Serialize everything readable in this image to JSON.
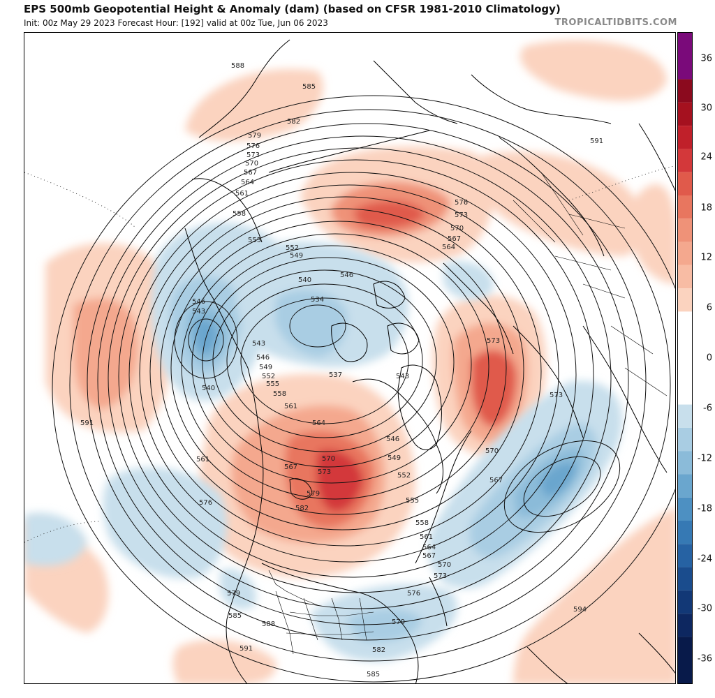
{
  "header": {
    "title": "EPS 500mb Geopotential Height & Anomaly (dam) (based on CFSR 1981-2010 Climatology)",
    "subtitle": "Init: 00z May 29 2023   Forecast Hour: [192]   valid at 00z Tue, Jun 06 2023",
    "brand": "TROPICALTIDBITS.COM"
  },
  "colorbar": {
    "labels": [
      "36",
      "30",
      "24",
      "18",
      "12",
      "6",
      "0",
      "-6",
      "-12",
      "-18",
      "-24",
      "-30",
      "-36"
    ],
    "bins": [
      {
        "range": "36 to 42",
        "color": "#7a0a7a"
      },
      {
        "range": "33 to 36",
        "color": "#8b0a1e"
      },
      {
        "range": "30 to 33",
        "color": "#a5111f"
      },
      {
        "range": "27 to 30",
        "color": "#c0202a"
      },
      {
        "range": "24 to 27",
        "color": "#d3383a"
      },
      {
        "range": "21 to 24",
        "color": "#e05a4b"
      },
      {
        "range": "18 to 21",
        "color": "#e8765f"
      },
      {
        "range": "15 to 18",
        "color": "#ef9278"
      },
      {
        "range": "12 to 15",
        "color": "#f4a88e"
      },
      {
        "range": "9 to 12",
        "color": "#f8bca4"
      },
      {
        "range": "6 to 9",
        "color": "#fbd3bf"
      },
      {
        "range": "-6 to 6",
        "color": "#ffffff"
      },
      {
        "range": "-9 to -6",
        "color": "#c8dfec"
      },
      {
        "range": "-12 to -9",
        "color": "#a9cde3"
      },
      {
        "range": "-15 to -12",
        "color": "#8bbbd9"
      },
      {
        "range": "-18 to -15",
        "color": "#6aa6ce"
      },
      {
        "range": "-21 to -18",
        "color": "#4d90c2"
      },
      {
        "range": "-24 to -21",
        "color": "#3679b4"
      },
      {
        "range": "-27 to -24",
        "color": "#2662a3"
      },
      {
        "range": "-30 to -27",
        "color": "#1a4c8d"
      },
      {
        "range": "-33 to -30",
        "color": "#123876"
      },
      {
        "range": "-36 to -33",
        "color": "#0d2760"
      },
      {
        "range": "-42 to -36",
        "color": "#081a4a"
      }
    ]
  },
  "contour_labels": [
    {
      "id": "588-a",
      "text": "588"
    },
    {
      "id": "585-a",
      "text": "585"
    },
    {
      "id": "582-a",
      "text": "582"
    },
    {
      "id": "579-a",
      "text": "579"
    },
    {
      "id": "576-a",
      "text": "576"
    },
    {
      "id": "573-a",
      "text": "573"
    },
    {
      "id": "570-a",
      "text": "570"
    },
    {
      "id": "567-a",
      "text": "567"
    },
    {
      "id": "564-a",
      "text": "564"
    },
    {
      "id": "561-a",
      "text": "561"
    },
    {
      "id": "558-a",
      "text": "558"
    },
    {
      "id": "555-a",
      "text": "555"
    },
    {
      "id": "552-a",
      "text": "552"
    },
    {
      "id": "549-a",
      "text": "549"
    },
    {
      "id": "546-a",
      "text": "546"
    },
    {
      "id": "540-a",
      "text": "540"
    },
    {
      "id": "534-a",
      "text": "534"
    },
    {
      "id": "546-b",
      "text": "546"
    },
    {
      "id": "543-a",
      "text": "543"
    },
    {
      "id": "543-b",
      "text": "543"
    },
    {
      "id": "546-c",
      "text": "546"
    },
    {
      "id": "549-b",
      "text": "549"
    },
    {
      "id": "540-b",
      "text": "540"
    },
    {
      "id": "552-b",
      "text": "552"
    },
    {
      "id": "555-b",
      "text": "555"
    },
    {
      "id": "558-b",
      "text": "558"
    },
    {
      "id": "561-b",
      "text": "561"
    },
    {
      "id": "537-a",
      "text": "537"
    },
    {
      "id": "543-c",
      "text": "543"
    },
    {
      "id": "564-b",
      "text": "564"
    },
    {
      "id": "546-d",
      "text": "546"
    },
    {
      "id": "549-c",
      "text": "549"
    },
    {
      "id": "567-b",
      "text": "567"
    },
    {
      "id": "570-b",
      "text": "570"
    },
    {
      "id": "573-b",
      "text": "573"
    },
    {
      "id": "552-c",
      "text": "552"
    },
    {
      "id": "579-b",
      "text": "579"
    },
    {
      "id": "582-b",
      "text": "582"
    },
    {
      "id": "555-c",
      "text": "555"
    },
    {
      "id": "558-c",
      "text": "558"
    },
    {
      "id": "561-c",
      "text": "561"
    },
    {
      "id": "564-c",
      "text": "564"
    },
    {
      "id": "567-c",
      "text": "567"
    },
    {
      "id": "570-c",
      "text": "570"
    },
    {
      "id": "573-c",
      "text": "573"
    },
    {
      "id": "576-b",
      "text": "576"
    },
    {
      "id": "579-c",
      "text": "579"
    },
    {
      "id": "582-c",
      "text": "582"
    },
    {
      "id": "585-b",
      "text": "585"
    },
    {
      "id": "561-d",
      "text": "561"
    },
    {
      "id": "576-c",
      "text": "576"
    },
    {
      "id": "591-a",
      "text": "591"
    },
    {
      "id": "579-d",
      "text": "579"
    },
    {
      "id": "585-c",
      "text": "585"
    },
    {
      "id": "588-b",
      "text": "588"
    },
    {
      "id": "591-b",
      "text": "591"
    },
    {
      "id": "576-d",
      "text": "576"
    },
    {
      "id": "573-d",
      "text": "573"
    },
    {
      "id": "570-d",
      "text": "570"
    },
    {
      "id": "567-d",
      "text": "567"
    },
    {
      "id": "564-d",
      "text": "564"
    },
    {
      "id": "573-e",
      "text": "573"
    },
    {
      "id": "573-f",
      "text": "573"
    },
    {
      "id": "570-e",
      "text": "570"
    },
    {
      "id": "567-e",
      "text": "567"
    },
    {
      "id": "591-c",
      "text": "591"
    },
    {
      "id": "594-a",
      "text": "594"
    }
  ]
}
